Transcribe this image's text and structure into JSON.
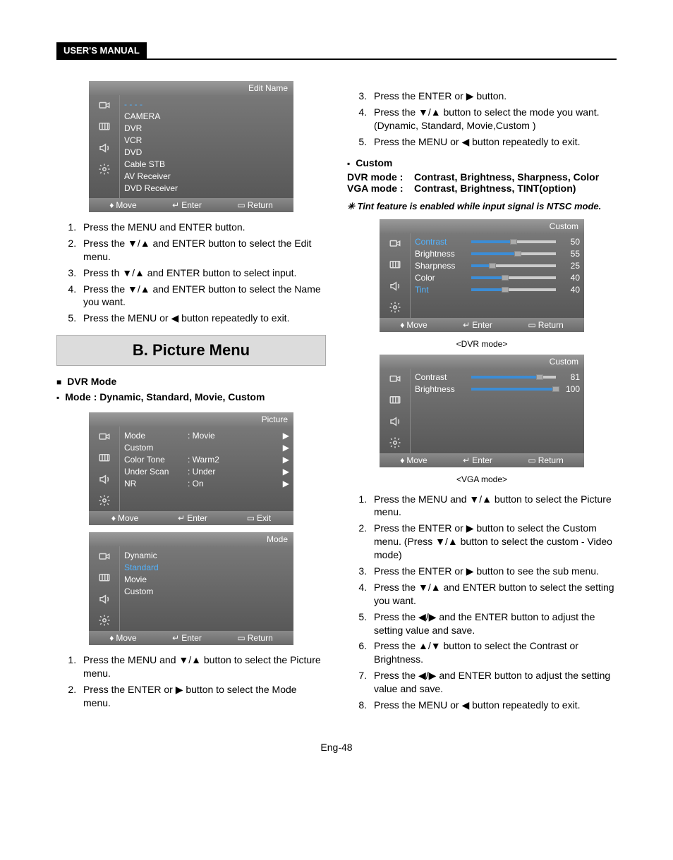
{
  "header": {
    "label": "USER'S MANUAL"
  },
  "osd_icons": [
    {
      "name": "input-icon"
    },
    {
      "name": "picture-icon"
    },
    {
      "name": "sound-icon"
    },
    {
      "name": "setup-icon"
    }
  ],
  "osd_edit": {
    "title": "Edit Name",
    "top_dash": "- - - -",
    "items": [
      "CAMERA",
      "DVR",
      "VCR",
      "DVD",
      "Cable STB",
      "AV Receiver",
      "DVD Receiver"
    ],
    "footer": {
      "move": "Move",
      "enter": "Enter",
      "return": "Return"
    }
  },
  "left_instr_a": [
    "Press the MENU and ENTER button.",
    "Press the ▼/▲ and ENTER button to select the Edit menu.",
    "Press th ▼/▲ and ENTER button to select input.",
    "Press the ▼/▲ and ENTER button to select the Name you want.",
    "Press the MENU or ◀ button repeatedly to exit."
  ],
  "section_b": {
    "title": "B. Picture Menu"
  },
  "dvr_mode_head": "DVR Mode",
  "mode_list_head": "Mode : Dynamic, Standard, Movie,  Custom",
  "osd_picture": {
    "title": "Picture",
    "rows": [
      {
        "label": "Mode",
        "value": ": Movie",
        "hl": false
      },
      {
        "label": "Custom",
        "value": "",
        "hl": false
      },
      {
        "label": "Color Tone",
        "value": ": Warm2",
        "hl": false
      },
      {
        "label": "Under Scan",
        "value": ": Under",
        "hl": false
      },
      {
        "label": "NR",
        "value": ": On",
        "hl": false
      }
    ],
    "footer": {
      "move": "Move",
      "enter": "Enter",
      "exit": "Exit"
    }
  },
  "osd_mode": {
    "title": "Mode",
    "items": [
      {
        "label": "Dynamic",
        "hl": false
      },
      {
        "label": "Standard",
        "hl": true
      },
      {
        "label": "Movie",
        "hl": false
      },
      {
        "label": "Custom",
        "hl": false
      }
    ],
    "footer": {
      "move": "Move",
      "enter": "Enter",
      "return": "Return"
    }
  },
  "left_instr_b": [
    "Press the MENU and ▼/▲ button to select the Picture menu.",
    "Press  the ENTER or ▶ button to select the Mode menu."
  ],
  "right_instr_top": [
    "Press  the ENTER or ▶ button.",
    "Press the ▼/▲ button to select the mode you want. (Dynamic, Standard, Movie,Custom )",
    "Press the MENU or ◀ button repeatedly to exit."
  ],
  "custom_head": "Custom",
  "mode_lines": {
    "dvr": {
      "k": "DVR mode :",
      "v": "Contrast, Brightness, Sharpness, Color"
    },
    "vga": {
      "k": "VGA mode   :",
      "v": "Contrast, Brightness, TINT(option)"
    }
  },
  "tint_note": "✳ Tint feature is enabled while input signal is NTSC mode.",
  "osd_custom_dvr": {
    "title": "Custom",
    "caption": "<DVR mode>",
    "sliders": [
      {
        "label": "Contrast",
        "hl": true,
        "val": 50,
        "max": 100
      },
      {
        "label": "Brightness",
        "hl": false,
        "val": 55,
        "max": 100
      },
      {
        "label": "Sharpness",
        "hl": false,
        "val": 25,
        "max": 100
      },
      {
        "label": "Color",
        "hl": false,
        "val": 40,
        "max": 100
      },
      {
        "label": "Tint",
        "hl": true,
        "val": 40,
        "max": 100
      }
    ],
    "footer": {
      "move": "Move",
      "enter": "Enter",
      "return": "Return"
    }
  },
  "osd_custom_vga": {
    "title": "Custom",
    "caption": "<VGA mode>",
    "sliders": [
      {
        "label": "Contrast",
        "hl": false,
        "val": 81,
        "max": 100
      },
      {
        "label": "Brightness",
        "hl": false,
        "val": 100,
        "max": 100
      }
    ],
    "footer": {
      "move": "Move",
      "enter": "Enter",
      "return": "Return"
    }
  },
  "right_instr_bottom": [
    "Press the MENU and ▼/▲ button to select the Picture menu.",
    "Press the ENTER or ▶ button to select the Custom menu. (Press ▼/▲ button to select the custom - Video mode)",
    "Press the ENTER or ▶ button to see the sub menu.",
    "Press the ▼/▲ and ENTER button to select the setting you want.",
    "Press the ◀/▶ and the ENTER button to adjust the setting value and save.",
    "Press the ▲/▼ button to select the Contrast or Brightness.",
    "Press the ◀/▶ and ENTER button to adjust the setting value and save.",
    "Press the MENU or ◀ button repeatedly to exit."
  ],
  "page_number": "Eng-48",
  "footer_glyphs": {
    "move": "♦",
    "enter": "↵",
    "return": "▭"
  },
  "colors": {
    "osd_bg": "#787878",
    "hl": "#52b3ff",
    "bar_fill": "#3c8dd6"
  }
}
